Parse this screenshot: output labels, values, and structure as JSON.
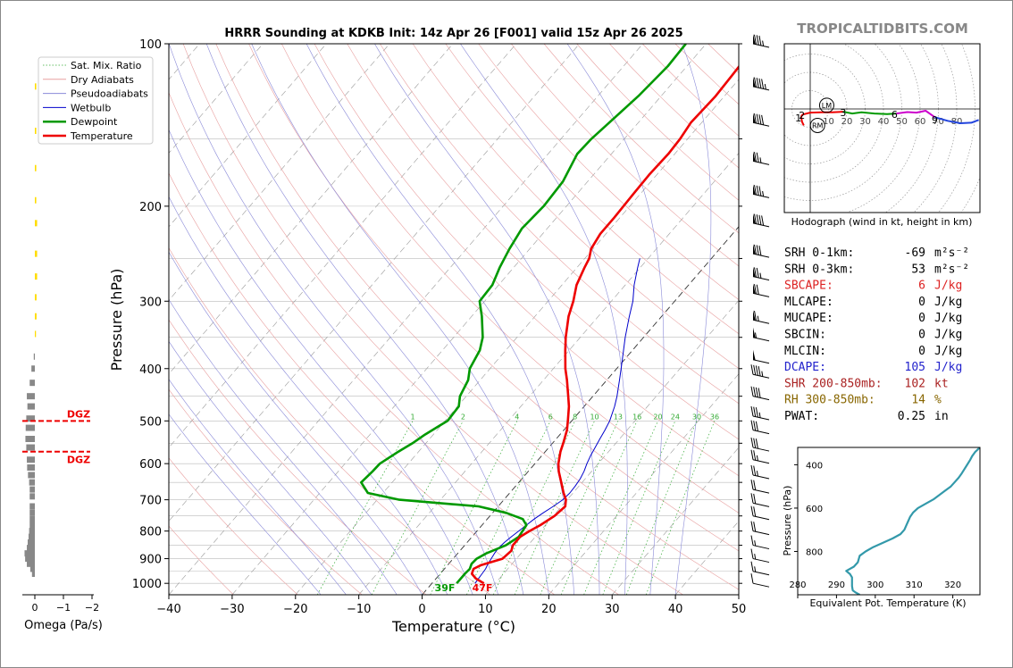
{
  "title": "HRRR Sounding at KDKB Init: 14z Apr 26 [F001] valid 15z Apr 26 2025",
  "brand": "TROPICALTIDBITS.COM",
  "chart_data": [
    {
      "type": "line",
      "name": "skew-t",
      "xlabel": "Temperature (°C)",
      "ylabel": "Pressure (hPa)",
      "xlim": [
        -40,
        50
      ],
      "ylim": [
        1050,
        100
      ],
      "yscale": "log",
      "x_ticks": [
        "−40",
        "−30",
        "−20",
        "−10",
        "0",
        "10",
        "20",
        "30",
        "40",
        "50"
      ],
      "y_ticks": [
        "100",
        "200",
        "300",
        "400",
        "500",
        "600",
        "700",
        "800",
        "900",
        "1000"
      ],
      "legend": [
        "Sat. Mix. Ratio",
        "Dry Adiabats",
        "Pseudoadiabats",
        "Wetbulb",
        "Dewpoint",
        "Temperature"
      ],
      "legend_position": "top-left",
      "mixing_ratio_labels": [
        "1",
        "2",
        "4",
        "6",
        "8",
        "10",
        "13",
        "16",
        "20",
        "24",
        "30",
        "36"
      ],
      "surface_dewpoint_label": "39F",
      "surface_temp_label": "47F",
      "series": [
        {
          "name": "Temperature",
          "color": "#ee0000",
          "p": [
            1000,
            980,
            960,
            940,
            925,
            900,
            870,
            850,
            820,
            800,
            780,
            750,
            720,
            700,
            680,
            650,
            620,
            600,
            570,
            550,
            520,
            500,
            470,
            450,
            420,
            400,
            370,
            350,
            320,
            300,
            280,
            260,
            250,
            240,
            225,
            210,
            200,
            190,
            175,
            160,
            150,
            140,
            125,
            115,
            100
          ],
          "t": [
            8.2,
            6.3,
            5.0,
            4.6,
            5.3,
            7.8,
            8.1,
            7.6,
            7.6,
            8.3,
            9.2,
            10.2,
            10.6,
            9.8,
            8.5,
            6.7,
            4.8,
            3.7,
            2.4,
            1.7,
            0.5,
            -0.6,
            -2.4,
            -3.9,
            -6.3,
            -8.1,
            -10.6,
            -12.3,
            -14.7,
            -16.0,
            -17.7,
            -18.8,
            -19.3,
            -20.3,
            -20.9,
            -20.9,
            -21.0,
            -21.1,
            -21.2,
            -21.0,
            -21.2,
            -21.7,
            -21.4,
            -21.6,
            -22.0
          ]
        },
        {
          "name": "Dewpoint",
          "color": "#009900",
          "p": [
            1000,
            980,
            960,
            940,
            920,
            900,
            880,
            850,
            820,
            800,
            780,
            760,
            740,
            720,
            700,
            680,
            650,
            620,
            600,
            570,
            550,
            530,
            510,
            500,
            470,
            450,
            420,
            400,
            370,
            350,
            320,
            300,
            280,
            260,
            240,
            220,
            200,
            180,
            160,
            150,
            140,
            125,
            110,
            100
          ],
          "t": [
            3.9,
            3.9,
            3.9,
            4.0,
            3.6,
            3.7,
            4.5,
            6.5,
            7.4,
            7.2,
            7.0,
            5.6,
            2.1,
            -3.1,
            -16.5,
            -22.4,
            -24.9,
            -24.6,
            -24.5,
            -23.2,
            -22.1,
            -21.3,
            -20.2,
            -19.6,
            -19.8,
            -21.0,
            -21.9,
            -23.2,
            -24.1,
            -25.4,
            -28.4,
            -30.8,
            -31.0,
            -32.2,
            -33.2,
            -34.0,
            -33.6,
            -33.9,
            -35.4,
            -35.2,
            -34.6,
            -33.6,
            -33.0,
            -33.2
          ]
        },
        {
          "name": "Wetbulb",
          "color": "#0000cc",
          "p": [
            1000,
            980,
            960,
            940,
            920,
            900,
            880,
            860,
            840,
            820,
            800,
            780,
            760,
            740,
            720,
            700,
            680,
            660,
            640,
            620,
            600,
            580,
            560,
            540,
            520,
            500,
            470,
            450,
            420,
            400,
            370,
            350,
            320,
            300,
            280,
            260,
            250
          ],
          "t": [
            6.8,
            6.7,
            6.6,
            6.5,
            6.2,
            6.0,
            5.8,
            5.7,
            5.9,
            6.2,
            6.6,
            7.0,
            7.4,
            8.0,
            8.7,
            9.3,
            9.5,
            9.4,
            9.2,
            8.8,
            8.2,
            7.7,
            7.3,
            6.9,
            6.5,
            6.0,
            4.8,
            3.8,
            2.0,
            0.7,
            -1.4,
            -2.9,
            -5.1,
            -6.6,
            -8.6,
            -10.4,
            -11.3
          ]
        }
      ]
    },
    {
      "type": "line",
      "name": "hodograph",
      "caption": "Hodograph (wind in kt, height in km)",
      "ring_labels": [
        "10",
        "20",
        "30",
        "40",
        "50",
        "60",
        "70",
        "80"
      ],
      "height_labels": [
        "1",
        "2",
        "3",
        "6",
        "9"
      ],
      "markers": [
        "LM",
        "RM"
      ],
      "segments": [
        {
          "from_km": 0,
          "to_km": 1,
          "color": "#ee0000",
          "u": [
            -5,
            -4.5,
            -3.5
          ],
          "v": [
            -4,
            -7,
            -9
          ]
        },
        {
          "from_km": 1,
          "to_km": 3,
          "color": "#ee0000",
          "u": [
            -5,
            -4,
            0,
            6,
            12,
            18
          ],
          "v": [
            -4,
            -3,
            -2,
            -1.8,
            -1.8,
            -1.5
          ]
        },
        {
          "from_km": 3,
          "to_km": 6,
          "color": "#009900",
          "u": [
            18,
            23,
            28,
            35,
            42,
            47
          ],
          "v": [
            -1.5,
            -2.5,
            -1.8,
            -2.5,
            -2.8,
            -2.5
          ]
        },
        {
          "from_km": 6,
          "to_km": 9,
          "color": "#cc00cc",
          "u": [
            47,
            53,
            58,
            63,
            68
          ],
          "v": [
            -2.5,
            -1.7,
            -2.0,
            -1.0,
            -4.5
          ]
        },
        {
          "from_km": 9,
          "to_km": 12,
          "color": "#2244dd",
          "u": [
            68,
            75,
            82,
            88,
            92
          ],
          "v": [
            -4.5,
            -6.5,
            -7.8,
            -7.5,
            -6.0
          ]
        }
      ],
      "storm_motion": {
        "LM": [
          9,
          2
        ],
        "RM": [
          4,
          -9
        ]
      }
    },
    {
      "type": "line",
      "name": "theta-e",
      "xlabel": "Equivalent Pot. Temperature (K)",
      "ylabel": "Pressure (hPa)",
      "xlim": [
        280,
        327
      ],
      "ylim": [
        1000,
        320
      ],
      "x_ticks": [
        "280",
        "290",
        "300",
        "310",
        "320"
      ],
      "y_ticks": [
        "400",
        "600",
        "800"
      ],
      "color": "#3399aa",
      "p": [
        1000,
        990,
        980,
        960,
        940,
        920,
        905,
        890,
        870,
        850,
        820,
        800,
        780,
        760,
        740,
        720,
        700,
        680,
        660,
        640,
        620,
        600,
        580,
        560,
        540,
        520,
        500,
        480,
        460,
        440,
        420,
        400,
        380,
        360,
        340,
        320
      ],
      "theta_e": [
        296.0,
        295.0,
        294.2,
        294.0,
        294.0,
        294.0,
        293.5,
        292.5,
        294.5,
        295.5,
        296.0,
        297.5,
        299.5,
        302.0,
        304.5,
        306.5,
        307.5,
        308.0,
        308.5,
        309.0,
        309.8,
        311.0,
        313.0,
        315.0,
        316.5,
        318.0,
        319.5,
        320.5,
        321.5,
        322.3,
        323.0,
        323.7,
        324.4,
        325.0,
        325.8,
        327.0
      ]
    },
    {
      "type": "bar",
      "name": "omega",
      "xlabel": "Omega (Pa/s)",
      "x_ticks": [
        "0",
        "−1",
        "−2"
      ],
      "dgz_label": "DGZ",
      "dgz_bounds_hpa": [
        500,
        570
      ],
      "p": [
        120,
        145,
        170,
        195,
        215,
        245,
        270,
        295,
        320,
        345,
        380,
        400,
        425,
        450,
        470,
        495,
        515,
        540,
        560,
        590,
        610,
        630,
        650,
        670,
        690,
        720,
        740,
        760,
        780,
        800,
        820,
        840,
        860,
        880,
        900,
        920,
        940,
        960
      ],
      "omega": [
        -0.05,
        -0.05,
        -0.05,
        -0.05,
        -0.08,
        -0.08,
        -0.08,
        -0.06,
        -0.06,
        -0.04,
        0.02,
        0.12,
        0.18,
        0.28,
        0.26,
        0.3,
        0.32,
        0.33,
        0.3,
        0.28,
        0.27,
        0.24,
        0.2,
        0.18,
        0.18,
        0.18,
        0.18,
        0.18,
        0.18,
        0.2,
        0.22,
        0.25,
        0.28,
        0.36,
        0.34,
        0.28,
        0.16,
        0.1
      ],
      "colors": {
        "upward": "#ffdd00",
        "downward": "#888888"
      }
    }
  ],
  "params": [
    {
      "label": "SRH 0-1km:",
      "value": "-69",
      "unit_html": "m²s⁻²",
      "color": "#000000"
    },
    {
      "label": "SRH 0-3km:",
      "value": "53",
      "unit_html": "m²s⁻²",
      "color": "#000000"
    },
    {
      "label": "SBCAPE:",
      "value": "6",
      "unit_html": "J/kg",
      "color": "#dd2222"
    },
    {
      "label": "MLCAPE:",
      "value": "0",
      "unit_html": "J/kg",
      "color": "#000000"
    },
    {
      "label": "MUCAPE:",
      "value": "0",
      "unit_html": "J/kg",
      "color": "#000000"
    },
    {
      "label": "SBCIN:",
      "value": "0",
      "unit_html": "J/kg",
      "color": "#000000"
    },
    {
      "label": "MLCIN:",
      "value": "0",
      "unit_html": "J/kg",
      "color": "#000000"
    },
    {
      "label": "DCAPE:",
      "value": "105",
      "unit_html": "J/kg",
      "color": "#2222cc"
    },
    {
      "label": "SHR 200-850mb:",
      "value": "102",
      "unit_html": "kt",
      "color": "#aa2222"
    },
    {
      "label": "RH 300-850mb:",
      "value": "14",
      "unit_html": "%",
      "color": "#886600"
    },
    {
      "label": "PWAT:",
      "value": "0.25",
      "unit_html": "in",
      "color": "#000000"
    }
  ],
  "wind_barbs": {
    "p": [
      100,
      120,
      140,
      165,
      190,
      215,
      245,
      270,
      290,
      325,
      350,
      385,
      410,
      450,
      490,
      520,
      560,
      590,
      630,
      670,
      710,
      750,
      800,
      850,
      900,
      950,
      1000
    ],
    "speed_kt": [
      85,
      95,
      90,
      75,
      85,
      90,
      80,
      75,
      70,
      65,
      55,
      50,
      45,
      40,
      35,
      30,
      30,
      25,
      25,
      20,
      20,
      20,
      20,
      15,
      15,
      15,
      10
    ]
  }
}
